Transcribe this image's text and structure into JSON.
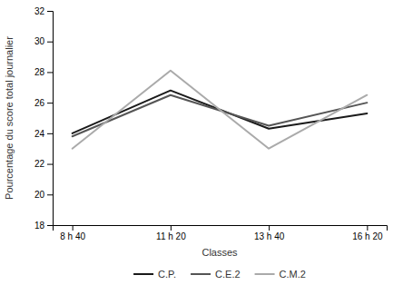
{
  "chart_data": {
    "type": "line",
    "xlabel": "Classes",
    "ylabel": "Pourcentage du score total journalier",
    "categories": [
      "8 h 40",
      "11 h 20",
      "13 h 40",
      "16 h 20"
    ],
    "series": [
      {
        "name": "C.P.",
        "color": "#1a1a1a",
        "values": [
          24.0,
          26.8,
          24.3,
          25.3
        ]
      },
      {
        "name": "C.E.2",
        "color": "#555555",
        "values": [
          23.8,
          26.5,
          24.5,
          26.0
        ]
      },
      {
        "name": "C.M.2",
        "color": "#aaaaaa",
        "values": [
          23.0,
          28.1,
          23.0,
          26.5
        ]
      }
    ],
    "ylim": [
      18,
      32
    ],
    "yticks": [
      18,
      20,
      22,
      24,
      26,
      28,
      30,
      32
    ],
    "grid": false,
    "legend": "bottom"
  }
}
